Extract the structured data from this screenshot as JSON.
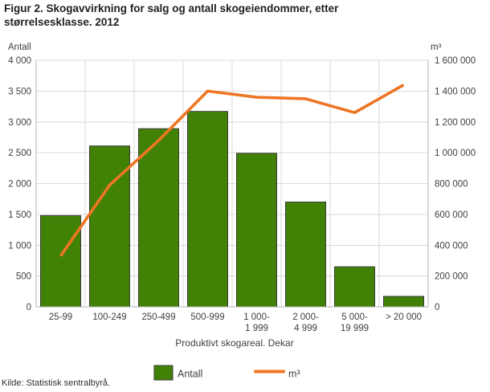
{
  "title": "Figur 2. Skogavvirkning for salg og antall skogeiendommer, etter størrelsesklasse. 2012",
  "source": "Kilde: Statistisk sentralbyrå.",
  "legend": {
    "bar_label": "Antall",
    "line_label": "m³"
  },
  "colors": {
    "bar_fill": "#418206",
    "line_stroke": "#ee7523"
  },
  "chart_data": {
    "type": "bar",
    "subtype": "combo-bar-line-dual-axis",
    "title": "Figur 2. Skogavvirkning for salg og antall skogeiendommer, etter størrelsesklasse. 2012",
    "xlabel": "Produktivt skogareal. Dekar",
    "grid": true,
    "legend_position": "bottom",
    "categories": [
      "25-99",
      "100-249",
      "250-499",
      "500-999",
      "1 000-\n1 999",
      "2 000-\n4 999",
      "5 000-\n19 999",
      "> 20 000"
    ],
    "series": [
      {
        "name": "Antall",
        "type": "bar",
        "axis": "left",
        "color": "#418206",
        "values": [
          1480,
          2610,
          2890,
          3170,
          2490,
          1700,
          650,
          170
        ]
      },
      {
        "name": "m³",
        "type": "line",
        "axis": "right",
        "color": "#ee7523",
        "values": [
          330000,
          790000,
          1080000,
          1400000,
          1360000,
          1350000,
          1260000,
          1440000
        ]
      }
    ],
    "left_axis": {
      "label": "Antall",
      "min": 0,
      "max": 4000,
      "tick_step": 500,
      "tick_labels": [
        "4 000",
        "3 500",
        "3 000",
        "2 500",
        "2 000",
        "1 500",
        "1 000",
        "500",
        "0"
      ]
    },
    "right_axis": {
      "label": "m³",
      "min": 0,
      "max": 1600000,
      "tick_step": 200000,
      "tick_labels": [
        "1 600 000",
        "1 400 000",
        "1 200 000",
        "1 000 000",
        "800 000",
        "600 000",
        "400 000",
        "200 000",
        "0"
      ]
    }
  }
}
